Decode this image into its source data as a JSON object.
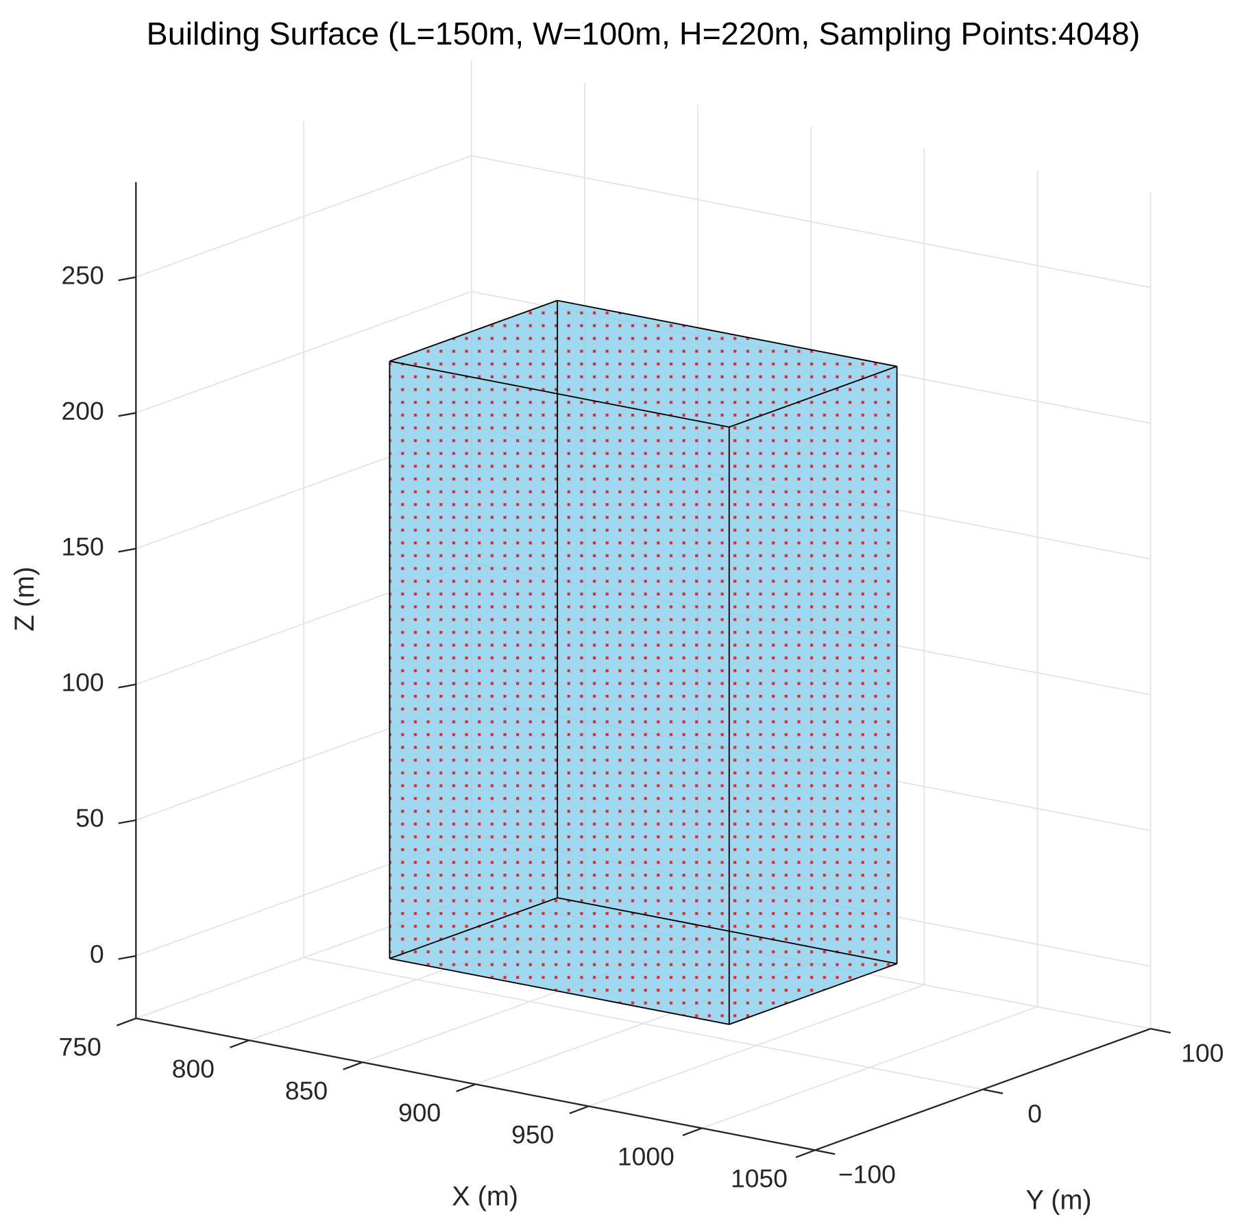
{
  "chart_data": {
    "type": "box3d",
    "title": "Building Surface (L=150m, W=100m, H=220m, Sampling Points:4048)",
    "xlabel": "X (m)",
    "ylabel": "Y (m)",
    "zlabel": "Z (m)",
    "xlim": [
      750,
      1050
    ],
    "ylim": [
      -100,
      100
    ],
    "zlim": [
      -23,
      285
    ],
    "xticks": [
      750,
      800,
      850,
      900,
      950,
      1000,
      1050
    ],
    "yticks": [
      {
        "value": -100,
        "label": "−100"
      },
      0,
      100
    ],
    "zticks": [
      0,
      50,
      100,
      150,
      200,
      250
    ],
    "grid": true,
    "building": {
      "x": [
        825,
        975
      ],
      "y": [
        -50,
        50
      ],
      "z": [
        0,
        220
      ],
      "color": "#87ceeb",
      "edge_color": "#000000"
    },
    "points_color": "#e8262b"
  }
}
